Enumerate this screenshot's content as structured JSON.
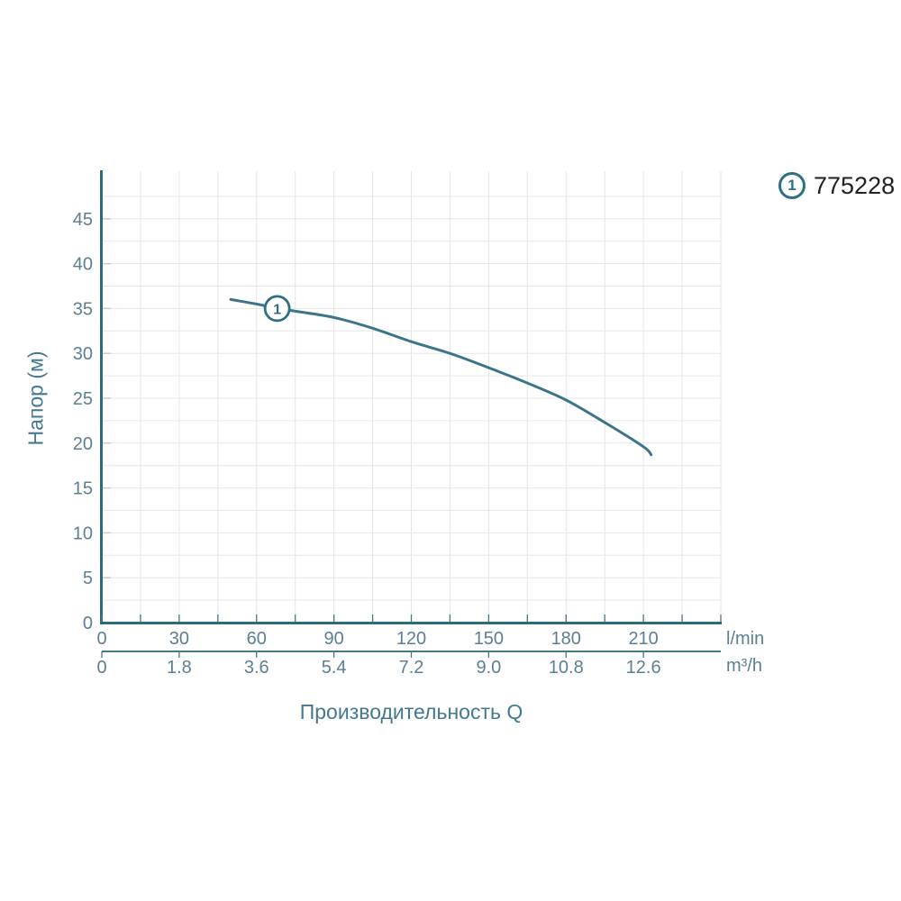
{
  "chart_data": {
    "type": "line",
    "title": "",
    "xlabel": "Производительность Q",
    "ylabel": "Напор (м)",
    "grid": true,
    "legend_position": "top-right",
    "x_axis": {
      "unit": "l/min",
      "tick_labels": [
        "0",
        "30",
        "60",
        "90",
        "120",
        "150",
        "180",
        "210"
      ],
      "tick_values": [
        0,
        30,
        60,
        90,
        120,
        150,
        180,
        210
      ],
      "minor_step": 15,
      "range": [
        0,
        240
      ]
    },
    "x_axis_secondary": {
      "unit": "m³/h",
      "tick_labels": [
        "0",
        "1.8",
        "3.6",
        "5.4",
        "7.2",
        "9.0",
        "10.8",
        "12.6"
      ],
      "aligned_to_primary_values": [
        0,
        30,
        60,
        90,
        120,
        150,
        180,
        210
      ]
    },
    "y_axis": {
      "tick_labels": [
        "0",
        "5",
        "10",
        "15",
        "20",
        "25",
        "30",
        "35",
        "40",
        "45"
      ],
      "tick_values": [
        0,
        5,
        10,
        15,
        20,
        25,
        30,
        35,
        40,
        45
      ],
      "grid_step": 2.5,
      "range": [
        0,
        50.3
      ]
    },
    "series": [
      {
        "name": "775228",
        "marker": "1",
        "marker_point": {
          "x": 68,
          "y": 35
        },
        "points_lmin_m": [
          [
            50,
            36.0
          ],
          [
            60,
            35.5
          ],
          [
            68,
            35.0
          ],
          [
            75,
            34.7
          ],
          [
            90,
            34.0
          ],
          [
            105,
            32.8
          ],
          [
            120,
            31.3
          ],
          [
            135,
            30.0
          ],
          [
            150,
            28.4
          ],
          [
            165,
            26.7
          ],
          [
            180,
            24.8
          ],
          [
            195,
            22.3
          ],
          [
            210,
            19.6
          ],
          [
            213,
            18.7
          ]
        ]
      }
    ]
  },
  "colors": {
    "background": "#ffffff",
    "axis_spine": "#2e6a7e",
    "secondary_axis": "#48768a",
    "curve": "#3e7489",
    "marker_stroke": "#2d7082",
    "grid": "#e6e6e6",
    "x_tick": "#477689",
    "y_tick": "#c2cdd3",
    "tick_labels": "#5c8093",
    "axis_titles": "#447890",
    "legend_text": "#222222"
  }
}
